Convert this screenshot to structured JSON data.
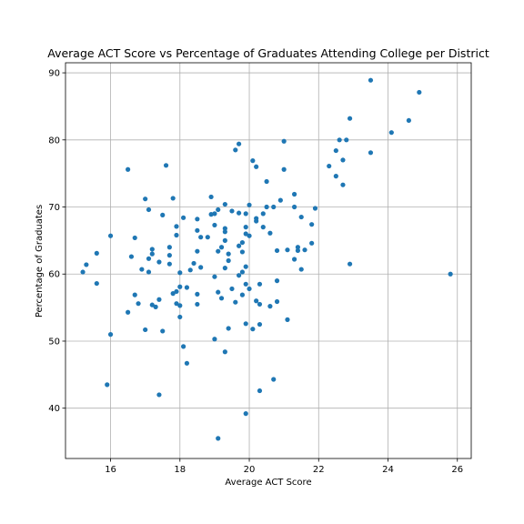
{
  "chart_data": {
    "type": "scatter",
    "title": "Average ACT Score vs Percentage of Graduates Attending College per District",
    "xlabel": "Average ACT Score",
    "ylabel": "Percentage of Graduates",
    "xlim": [
      14.7,
      26.4
    ],
    "ylim": [
      32.5,
      91.5
    ],
    "xticks": [
      16,
      18,
      20,
      22,
      24,
      26
    ],
    "yticks": [
      40,
      50,
      60,
      70,
      80,
      90
    ],
    "grid": true,
    "color": "#1f77b4",
    "points": [
      [
        15.2,
        60.3
      ],
      [
        15.3,
        61.4
      ],
      [
        15.6,
        63.1
      ],
      [
        15.6,
        58.6
      ],
      [
        15.9,
        43.5
      ],
      [
        16.0,
        65.7
      ],
      [
        16.0,
        51.0
      ],
      [
        16.5,
        75.6
      ],
      [
        16.5,
        54.3
      ],
      [
        16.6,
        62.6
      ],
      [
        16.7,
        65.4
      ],
      [
        16.7,
        56.9
      ],
      [
        16.8,
        55.6
      ],
      [
        16.9,
        60.7
      ],
      [
        17.0,
        71.2
      ],
      [
        17.0,
        51.7
      ],
      [
        17.1,
        69.6
      ],
      [
        17.1,
        62.3
      ],
      [
        17.1,
        60.3
      ],
      [
        17.2,
        63.7
      ],
      [
        17.2,
        63.0
      ],
      [
        17.2,
        55.4
      ],
      [
        17.3,
        55.1
      ],
      [
        17.4,
        61.8
      ],
      [
        17.4,
        56.2
      ],
      [
        17.4,
        42.0
      ],
      [
        17.5,
        68.8
      ],
      [
        17.5,
        51.5
      ],
      [
        17.6,
        76.2
      ],
      [
        17.7,
        64.0
      ],
      [
        17.7,
        62.8
      ],
      [
        17.7,
        61.5
      ],
      [
        17.8,
        71.3
      ],
      [
        17.8,
        57.1
      ],
      [
        17.9,
        67.1
      ],
      [
        17.9,
        65.8
      ],
      [
        17.9,
        57.4
      ],
      [
        17.9,
        55.6
      ],
      [
        18.0,
        60.2
      ],
      [
        18.0,
        58.1
      ],
      [
        18.0,
        55.3
      ],
      [
        18.0,
        53.6
      ],
      [
        18.1,
        68.4
      ],
      [
        18.1,
        49.2
      ],
      [
        18.2,
        58.0
      ],
      [
        18.2,
        46.7
      ],
      [
        18.3,
        60.6
      ],
      [
        18.4,
        61.6
      ],
      [
        18.5,
        68.2
      ],
      [
        18.5,
        66.5
      ],
      [
        18.5,
        63.4
      ],
      [
        18.5,
        57.0
      ],
      [
        18.5,
        55.5
      ],
      [
        18.6,
        61.0
      ],
      [
        18.6,
        65.5
      ],
      [
        18.8,
        65.5
      ],
      [
        18.9,
        71.5
      ],
      [
        18.9,
        68.9
      ],
      [
        19.0,
        69.0
      ],
      [
        19.0,
        67.3
      ],
      [
        19.0,
        59.6
      ],
      [
        19.0,
        50.3
      ],
      [
        19.1,
        69.6
      ],
      [
        19.1,
        63.4
      ],
      [
        19.1,
        57.3
      ],
      [
        19.1,
        35.5
      ],
      [
        19.2,
        64.0
      ],
      [
        19.2,
        56.4
      ],
      [
        19.3,
        70.4
      ],
      [
        19.3,
        66.8
      ],
      [
        19.3,
        66.3
      ],
      [
        19.3,
        65.0
      ],
      [
        19.3,
        60.9
      ],
      [
        19.3,
        48.4
      ],
      [
        19.4,
        62.0
      ],
      [
        19.4,
        63.0
      ],
      [
        19.4,
        51.9
      ],
      [
        19.5,
        69.4
      ],
      [
        19.5,
        57.8
      ],
      [
        19.6,
        78.5
      ],
      [
        19.6,
        55.8
      ],
      [
        19.7,
        79.4
      ],
      [
        19.7,
        69.1
      ],
      [
        19.7,
        64.2
      ],
      [
        19.7,
        59.8
      ],
      [
        19.8,
        64.7
      ],
      [
        19.8,
        63.3
      ],
      [
        19.8,
        60.3
      ],
      [
        19.8,
        56.9
      ],
      [
        19.9,
        69.0
      ],
      [
        19.9,
        67.0
      ],
      [
        19.9,
        66.0
      ],
      [
        19.9,
        61.1
      ],
      [
        19.9,
        58.5
      ],
      [
        19.9,
        52.6
      ],
      [
        19.9,
        39.2
      ],
      [
        20.0,
        70.3
      ],
      [
        20.0,
        65.7
      ],
      [
        20.0,
        57.8
      ],
      [
        20.1,
        76.9
      ],
      [
        20.1,
        51.8
      ],
      [
        20.2,
        76.0
      ],
      [
        20.2,
        68.3
      ],
      [
        20.2,
        67.9
      ],
      [
        20.2,
        56.0
      ],
      [
        20.3,
        58.5
      ],
      [
        20.3,
        55.5
      ],
      [
        20.3,
        52.5
      ],
      [
        20.3,
        42.6
      ],
      [
        20.4,
        69.0
      ],
      [
        20.4,
        67.0
      ],
      [
        20.5,
        73.8
      ],
      [
        20.5,
        70.0
      ],
      [
        20.6,
        66.1
      ],
      [
        20.6,
        55.2
      ],
      [
        20.7,
        70.0
      ],
      [
        20.7,
        44.3
      ],
      [
        20.8,
        63.5
      ],
      [
        20.8,
        59.0
      ],
      [
        20.8,
        55.9
      ],
      [
        20.9,
        71.0
      ],
      [
        21.0,
        79.8
      ],
      [
        21.0,
        75.6
      ],
      [
        21.1,
        63.6
      ],
      [
        21.1,
        53.2
      ],
      [
        21.3,
        71.9
      ],
      [
        21.3,
        70.0
      ],
      [
        21.3,
        62.2
      ],
      [
        21.4,
        64.0
      ],
      [
        21.4,
        63.5
      ],
      [
        21.5,
        68.5
      ],
      [
        21.5,
        60.7
      ],
      [
        21.6,
        63.6
      ],
      [
        21.8,
        64.6
      ],
      [
        21.8,
        67.4
      ],
      [
        21.9,
        69.8
      ],
      [
        22.3,
        76.1
      ],
      [
        22.5,
        78.4
      ],
      [
        22.5,
        74.6
      ],
      [
        22.6,
        80.0
      ],
      [
        22.7,
        73.3
      ],
      [
        22.7,
        77.0
      ],
      [
        22.8,
        80.0
      ],
      [
        22.9,
        83.2
      ],
      [
        22.9,
        61.5
      ],
      [
        23.5,
        88.9
      ],
      [
        23.5,
        78.1
      ],
      [
        24.1,
        81.1
      ],
      [
        24.6,
        82.9
      ],
      [
        24.9,
        87.1
      ],
      [
        25.8,
        60.0
      ]
    ]
  }
}
